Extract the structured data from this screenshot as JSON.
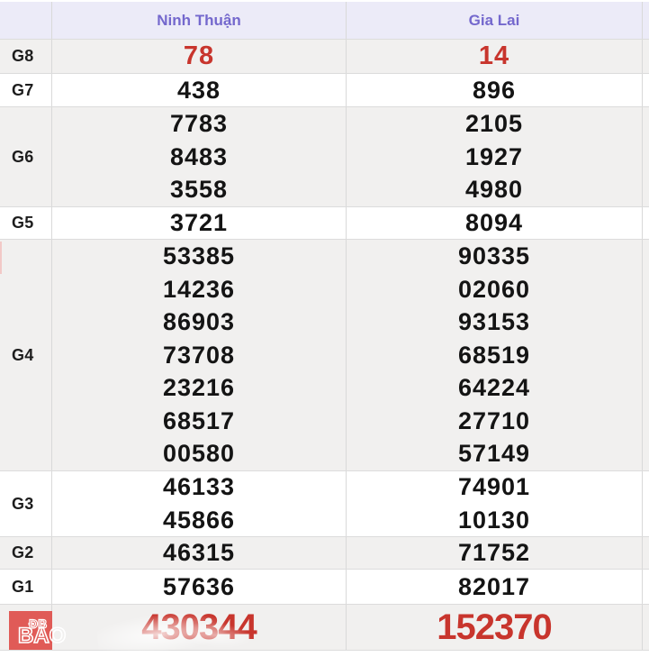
{
  "table": {
    "columns": [
      "Ninh Thuận",
      "Gia Lai"
    ],
    "rows": [
      {
        "label": "G8",
        "ninh_thuan": [
          "78"
        ],
        "gia_lai": [
          "14"
        ]
      },
      {
        "label": "G7",
        "ninh_thuan": [
          "438"
        ],
        "gia_lai": [
          "896"
        ]
      },
      {
        "label": "G6",
        "ninh_thuan": [
          "7783",
          "8483",
          "3558"
        ],
        "gia_lai": [
          "2105",
          "1927",
          "4980"
        ]
      },
      {
        "label": "G5",
        "ninh_thuan": [
          "3721"
        ],
        "gia_lai": [
          "8094"
        ]
      },
      {
        "label": "G4",
        "ninh_thuan": [
          "53385",
          "14236",
          "86903",
          "73708",
          "23216",
          "68517",
          "00580"
        ],
        "gia_lai": [
          "90335",
          "02060",
          "93153",
          "68519",
          "64224",
          "27710",
          "57149"
        ]
      },
      {
        "label": "G3",
        "ninh_thuan": [
          "46133",
          "45866"
        ],
        "gia_lai": [
          "74901",
          "10130"
        ]
      },
      {
        "label": "G2",
        "ninh_thuan": [
          "46315"
        ],
        "gia_lai": [
          "71752"
        ]
      },
      {
        "label": "G1",
        "ninh_thuan": [
          "57636"
        ],
        "gia_lai": [
          "82017"
        ]
      },
      {
        "label": "ĐB",
        "ninh_thuan": [
          "430344"
        ],
        "gia_lai": [
          "152370"
        ]
      }
    ]
  },
  "watermark": {
    "line1": "ĐB",
    "line2": "BAO"
  },
  "colors": {
    "accent_red": "#c8352d",
    "header_purple": "#7468cd",
    "header_bg": "#ecebf8",
    "row_gray": "#f1f0ef",
    "logo_red": "#e05b57",
    "number_black": "#141414"
  }
}
